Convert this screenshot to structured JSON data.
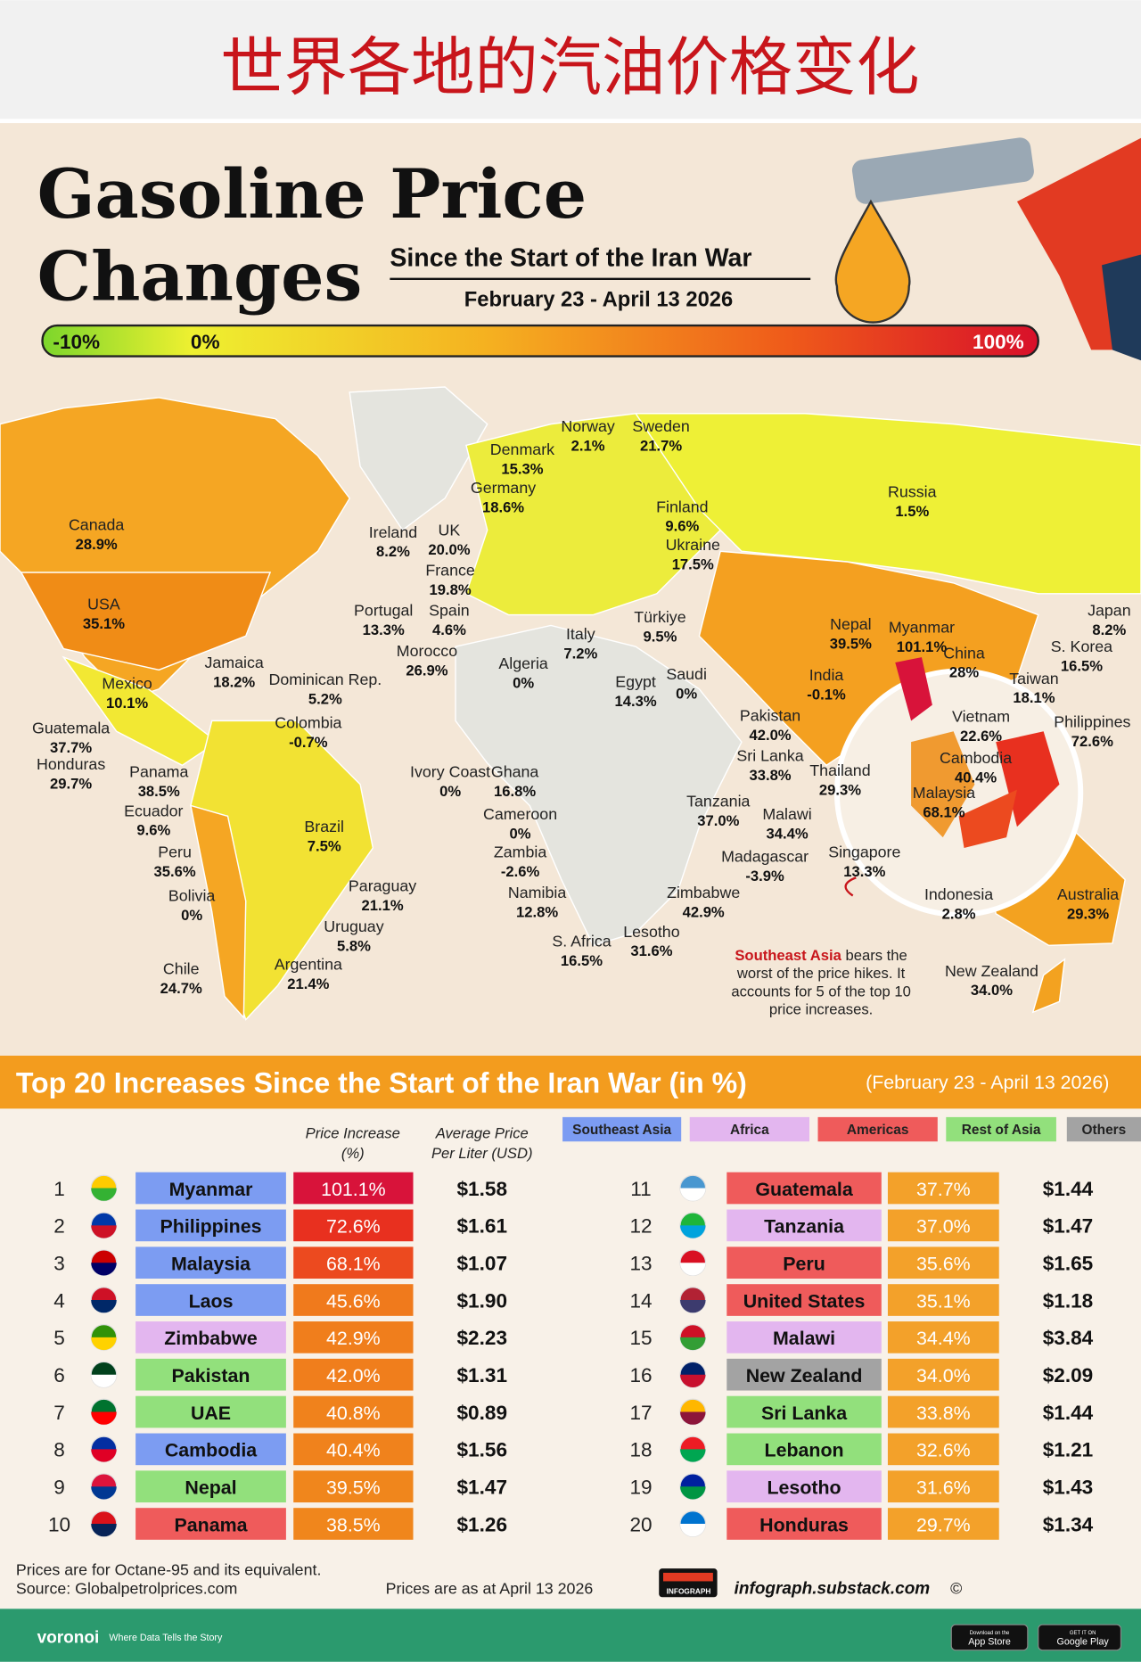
{
  "banner": "世界各地的汽油价格变化",
  "header": {
    "title_line1": "Gasoline Price",
    "title_line2": "Changes",
    "subtitle": "Since the Start of the Iran War",
    "dates": "February 23 - April 13 2026"
  },
  "scale": {
    "labels": [
      "-10%",
      "0%",
      "100%"
    ]
  },
  "map": {
    "labels": [
      {
        "name": "Norway",
        "value": "2.1%"
      },
      {
        "name": "Sweden",
        "value": "21.7%"
      },
      {
        "name": "Denmark",
        "value": "15.3%"
      },
      {
        "name": "Germany",
        "value": "18.6%"
      },
      {
        "name": "Finland",
        "value": "9.6%"
      },
      {
        "name": "Russia",
        "value": "1.5%"
      },
      {
        "name": "Canada",
        "value": "28.9%"
      },
      {
        "name": "Ireland",
        "value": "8.2%"
      },
      {
        "name": "UK",
        "value": "20.0%"
      },
      {
        "name": "Ukraine",
        "value": "17.5%"
      },
      {
        "name": "France",
        "value": "19.8%"
      },
      {
        "name": "Portugal",
        "value": "13.3%"
      },
      {
        "name": "Spain",
        "value": "4.6%"
      },
      {
        "name": "USA",
        "value": "35.1%"
      },
      {
        "name": "Italy",
        "value": "7.2%"
      },
      {
        "name": "Türkiye",
        "value": "9.5%"
      },
      {
        "name": "Morocco",
        "value": "26.9%"
      },
      {
        "name": "Algeria",
        "value": "0%"
      },
      {
        "name": "Egypt",
        "value": "14.3%"
      },
      {
        "name": "Saudi",
        "value": "0%"
      },
      {
        "name": "Nepal",
        "value": "39.5%"
      },
      {
        "name": "Myanmar",
        "value": "101.1%"
      },
      {
        "name": "China",
        "value": "28%"
      },
      {
        "name": "Japan",
        "value": "8.2%"
      },
      {
        "name": "S. Korea",
        "value": "16.5%"
      },
      {
        "name": "Taiwan",
        "value": "18.1%"
      },
      {
        "name": "India",
        "value": "-0.1%"
      },
      {
        "name": "Jamaica",
        "value": "18.2%"
      },
      {
        "name": "Dominican Rep.",
        "value": "5.2%"
      },
      {
        "name": "Mexico",
        "value": "10.1%"
      },
      {
        "name": "Guatemala",
        "value": "37.7%"
      },
      {
        "name": "Colombia",
        "value": "-0.7%"
      },
      {
        "name": "Honduras",
        "value": "29.7%"
      },
      {
        "name": "Panama",
        "value": "38.5%"
      },
      {
        "name": "Pakistan",
        "value": "42.0%"
      },
      {
        "name": "Vietnam",
        "value": "22.6%"
      },
      {
        "name": "Philippines",
        "value": "72.6%"
      },
      {
        "name": "Sri Lanka",
        "value": "33.8%"
      },
      {
        "name": "Cambodia",
        "value": "40.4%"
      },
      {
        "name": "Thailand",
        "value": "29.3%"
      },
      {
        "name": "Malaysia",
        "value": "68.1%"
      },
      {
        "name": "Ivory Coast",
        "value": "0%"
      },
      {
        "name": "Ghana",
        "value": "16.8%"
      },
      {
        "name": "Ecuador",
        "value": "9.6%"
      },
      {
        "name": "Cameroon",
        "value": "0%"
      },
      {
        "name": "Tanzania",
        "value": "37.0%"
      },
      {
        "name": "Malawi",
        "value": "34.4%"
      },
      {
        "name": "Brazil",
        "value": "7.5%"
      },
      {
        "name": "Peru",
        "value": "35.6%"
      },
      {
        "name": "Zambia",
        "value": "-2.6%"
      },
      {
        "name": "Madagascar",
        "value": "-3.9%"
      },
      {
        "name": "Singapore",
        "value": "13.3%"
      },
      {
        "name": "Paraguay",
        "value": "21.1%"
      },
      {
        "name": "Namibia",
        "value": "12.8%"
      },
      {
        "name": "Zimbabwe",
        "value": "42.9%"
      },
      {
        "name": "Indonesia",
        "value": "2.8%"
      },
      {
        "name": "Australia",
        "value": "29.3%"
      },
      {
        "name": "Bolivia",
        "value": "0%"
      },
      {
        "name": "Uruguay",
        "value": "5.8%"
      },
      {
        "name": "Lesotho",
        "value": "31.6%"
      },
      {
        "name": "S. Africa",
        "value": "16.5%"
      },
      {
        "name": "Argentina",
        "value": "21.4%"
      },
      {
        "name": "Chile",
        "value": "24.7%"
      },
      {
        "name": "New Zealand",
        "value": "34.0%"
      }
    ],
    "callout": {
      "highlight": "Southeast Asia",
      "lines": [
        "bears the",
        "worst of the price hikes. It",
        "accounts for 5 of the top 10",
        "price increases."
      ]
    }
  },
  "table": {
    "title": "Top 20 Increases Since the Start of the Iran War (in %)",
    "dates": "(February 23 - April 13 2026)",
    "headers": {
      "increase": [
        "Price Increase",
        "(%)"
      ],
      "price": [
        "Average Price",
        "Per Liter (USD)"
      ]
    },
    "legend": [
      {
        "name": "Southeast Asia",
        "color": "#7c9cf2"
      },
      {
        "name": "Africa",
        "color": "#e3b6ef"
      },
      {
        "name": "Americas",
        "color": "#ef5b5b"
      },
      {
        "name": "Rest of Asia",
        "color": "#92e07c"
      },
      {
        "name": "Others",
        "color": "#a3a3a3"
      }
    ],
    "rows": [
      {
        "rank": 1,
        "country": "Myanmar",
        "increase": "101.1%",
        "price": "$1.58",
        "color": "#7c9cf2",
        "increase_color": "#d8133a"
      },
      {
        "rank": 2,
        "country": "Philippines",
        "increase": "72.6%",
        "price": "$1.61",
        "color": "#7c9cf2",
        "increase_color": "#e8301f"
      },
      {
        "rank": 3,
        "country": "Malaysia",
        "increase": "68.1%",
        "price": "$1.07",
        "color": "#7c9cf2",
        "increase_color": "#ec4a1f"
      },
      {
        "rank": 4,
        "country": "Laos",
        "increase": "45.6%",
        "price": "$1.90",
        "color": "#7c9cf2",
        "increase_color": "#f07a1c"
      },
      {
        "rank": 5,
        "country": "Zimbabwe",
        "increase": "42.9%",
        "price": "$2.23",
        "color": "#e3b6ef",
        "increase_color": "#f07e1c"
      },
      {
        "rank": 6,
        "country": "Pakistan",
        "increase": "42.0%",
        "price": "$1.31",
        "color": "#92e07c",
        "increase_color": "#f07e1c"
      },
      {
        "rank": 7,
        "country": "UAE",
        "increase": "40.8%",
        "price": "$0.89",
        "color": "#92e07c",
        "increase_color": "#f0821c"
      },
      {
        "rank": 8,
        "country": "Cambodia",
        "increase": "40.4%",
        "price": "$1.56",
        "color": "#7c9cf2",
        "increase_color": "#f0821c"
      },
      {
        "rank": 9,
        "country": "Nepal",
        "increase": "39.5%",
        "price": "$1.47",
        "color": "#92e07c",
        "increase_color": "#f0861c"
      },
      {
        "rank": 10,
        "country": "Panama",
        "increase": "38.5%",
        "price": "$1.26",
        "color": "#ef5b5b",
        "increase_color": "#f0861c"
      },
      {
        "rank": 11,
        "country": "Guatemala",
        "increase": "37.7%",
        "price": "$1.44",
        "color": "#ef5b5b",
        "increase_color": "#f3a12a"
      },
      {
        "rank": 12,
        "country": "Tanzania",
        "increase": "37.0%",
        "price": "$1.47",
        "color": "#e3b6ef",
        "increase_color": "#f3a12a"
      },
      {
        "rank": 13,
        "country": "Peru",
        "increase": "35.6%",
        "price": "$1.65",
        "color": "#ef5b5b",
        "increase_color": "#f3a12a"
      },
      {
        "rank": 14,
        "country": "United States",
        "increase": "35.1%",
        "price": "$1.18",
        "color": "#ef5b5b",
        "increase_color": "#f3a12a"
      },
      {
        "rank": 15,
        "country": "Malawi",
        "increase": "34.4%",
        "price": "$3.84",
        "color": "#e3b6ef",
        "increase_color": "#f3a12a"
      },
      {
        "rank": 16,
        "country": "New Zealand",
        "increase": "34.0%",
        "price": "$2.09",
        "color": "#a3a3a3",
        "increase_color": "#f3a12a"
      },
      {
        "rank": 17,
        "country": "Sri Lanka",
        "increase": "33.8%",
        "price": "$1.44",
        "color": "#92e07c",
        "increase_color": "#f3a12a"
      },
      {
        "rank": 18,
        "country": "Lebanon",
        "increase": "32.6%",
        "price": "$1.21",
        "color": "#92e07c",
        "increase_color": "#f3a12a"
      },
      {
        "rank": 19,
        "country": "Lesotho",
        "increase": "31.6%",
        "price": "$1.43",
        "color": "#e3b6ef",
        "increase_color": "#f3a12a"
      },
      {
        "rank": 20,
        "country": "Honduras",
        "increase": "29.7%",
        "price": "$1.34",
        "color": "#ef5b5b",
        "increase_color": "#f3a12a"
      }
    ]
  },
  "footer": {
    "note": "Prices are for Octane-95 and its equivalent.",
    "source": "Source: Globalpetrolprices.com",
    "as_at": "Prices are as at April 13 2026",
    "logo": "INFOGRAPH",
    "site": "infograph.substack.com",
    "copyright": "©",
    "brand": "voronoi",
    "tagline": "Where Data Tells the Story",
    "app_store": [
      "Download on the",
      "App Store"
    ],
    "google_play": [
      "GET IT ON",
      "Google Play"
    ]
  }
}
